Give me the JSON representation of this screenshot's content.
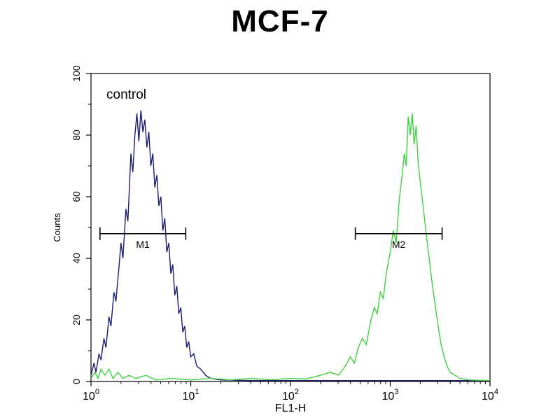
{
  "title": "MCF-7",
  "annotation": "control",
  "axes": {
    "x_label": "FL1-H",
    "y_label": "Counts",
    "x_tick_exponents": [
      0,
      1,
      2,
      3,
      4
    ],
    "y_ticks": [
      0,
      20,
      40,
      60,
      80,
      100
    ]
  },
  "colors": {
    "control_curve": "#1b1b70",
    "green_curve": "#3ecf3e",
    "axis": "#000000",
    "marker": "#000000"
  },
  "chart_data": {
    "type": "line",
    "x_scale": "log10",
    "title": "MCF-7",
    "xlabel": "FL1-H",
    "ylabel": "Counts",
    "xlim_log10": [
      0,
      4
    ],
    "ylim": [
      0,
      100
    ],
    "grid": false,
    "legend": "none",
    "markers": [
      {
        "label": "M1",
        "x_log10_start": 0.09,
        "x_log10_end": 0.95,
        "y": 48
      },
      {
        "label": "M2",
        "x_log10_start": 2.65,
        "x_log10_end": 3.52,
        "y": 48
      }
    ],
    "series": [
      {
        "name": "control",
        "color": "#1b1b70",
        "points_log10x_y": [
          [
            0.0,
            2
          ],
          [
            0.03,
            6
          ],
          [
            0.05,
            3
          ],
          [
            0.08,
            9
          ],
          [
            0.1,
            7
          ],
          [
            0.13,
            14
          ],
          [
            0.15,
            11
          ],
          [
            0.18,
            21
          ],
          [
            0.2,
            18
          ],
          [
            0.23,
            29
          ],
          [
            0.25,
            26
          ],
          [
            0.28,
            37
          ],
          [
            0.3,
            45
          ],
          [
            0.32,
            40
          ],
          [
            0.35,
            56
          ],
          [
            0.37,
            52
          ],
          [
            0.4,
            74
          ],
          [
            0.42,
            68
          ],
          [
            0.44,
            80
          ],
          [
            0.46,
            87
          ],
          [
            0.48,
            78
          ],
          [
            0.5,
            88
          ],
          [
            0.52,
            81
          ],
          [
            0.54,
            85
          ],
          [
            0.56,
            76
          ],
          [
            0.58,
            81
          ],
          [
            0.6,
            70
          ],
          [
            0.62,
            74
          ],
          [
            0.64,
            63
          ],
          [
            0.66,
            67
          ],
          [
            0.68,
            57
          ],
          [
            0.7,
            60
          ],
          [
            0.72,
            49
          ],
          [
            0.74,
            53
          ],
          [
            0.76,
            42
          ],
          [
            0.78,
            45
          ],
          [
            0.8,
            35
          ],
          [
            0.82,
            38
          ],
          [
            0.84,
            28
          ],
          [
            0.86,
            31
          ],
          [
            0.88,
            22
          ],
          [
            0.9,
            24
          ],
          [
            0.92,
            16
          ],
          [
            0.94,
            18
          ],
          [
            0.96,
            11
          ],
          [
            0.98,
            13
          ],
          [
            1.0,
            8
          ],
          [
            1.03,
            9
          ],
          [
            1.06,
            5
          ],
          [
            1.1,
            4
          ],
          [
            1.15,
            2
          ],
          [
            1.2,
            1
          ],
          [
            1.3,
            0.5
          ],
          [
            1.6,
            0.3
          ],
          [
            2.0,
            0.3
          ],
          [
            2.5,
            0.3
          ],
          [
            3.0,
            0.3
          ],
          [
            3.5,
            0.3
          ],
          [
            4.0,
            0.3
          ]
        ]
      },
      {
        "name": "green",
        "color": "#3ecf3e",
        "points_log10x_y": [
          [
            0.0,
            1
          ],
          [
            0.04,
            3
          ],
          [
            0.07,
            1
          ],
          [
            0.1,
            4
          ],
          [
            0.14,
            2
          ],
          [
            0.18,
            4
          ],
          [
            0.22,
            1
          ],
          [
            0.27,
            3
          ],
          [
            0.32,
            1
          ],
          [
            0.38,
            2
          ],
          [
            0.45,
            1
          ],
          [
            0.55,
            2
          ],
          [
            0.65,
            0.5
          ],
          [
            0.8,
            1
          ],
          [
            1.0,
            0.5
          ],
          [
            1.2,
            1
          ],
          [
            1.4,
            0.5
          ],
          [
            1.6,
            1
          ],
          [
            1.8,
            0.6
          ],
          [
            2.0,
            1
          ],
          [
            2.15,
            0.8
          ],
          [
            2.3,
            2
          ],
          [
            2.4,
            3
          ],
          [
            2.48,
            2
          ],
          [
            2.55,
            5
          ],
          [
            2.6,
            8
          ],
          [
            2.64,
            6
          ],
          [
            2.68,
            11
          ],
          [
            2.72,
            14
          ],
          [
            2.76,
            12
          ],
          [
            2.8,
            19
          ],
          [
            2.84,
            24
          ],
          [
            2.87,
            22
          ],
          [
            2.9,
            29
          ],
          [
            2.93,
            27
          ],
          [
            2.96,
            35
          ],
          [
            3.0,
            42
          ],
          [
            3.03,
            49
          ],
          [
            3.06,
            45
          ],
          [
            3.09,
            59
          ],
          [
            3.12,
            67
          ],
          [
            3.14,
            74
          ],
          [
            3.16,
            70
          ],
          [
            3.18,
            86
          ],
          [
            3.2,
            80
          ],
          [
            3.22,
            87
          ],
          [
            3.24,
            77
          ],
          [
            3.26,
            83
          ],
          [
            3.28,
            71
          ],
          [
            3.3,
            65
          ],
          [
            3.33,
            57
          ],
          [
            3.36,
            48
          ],
          [
            3.39,
            40
          ],
          [
            3.42,
            32
          ],
          [
            3.45,
            25
          ],
          [
            3.48,
            18
          ],
          [
            3.51,
            12
          ],
          [
            3.54,
            8
          ],
          [
            3.57,
            5
          ],
          [
            3.6,
            3
          ],
          [
            3.65,
            2
          ],
          [
            3.7,
            1
          ],
          [
            3.8,
            0.5
          ],
          [
            4.0,
            0.3
          ]
        ]
      }
    ]
  }
}
